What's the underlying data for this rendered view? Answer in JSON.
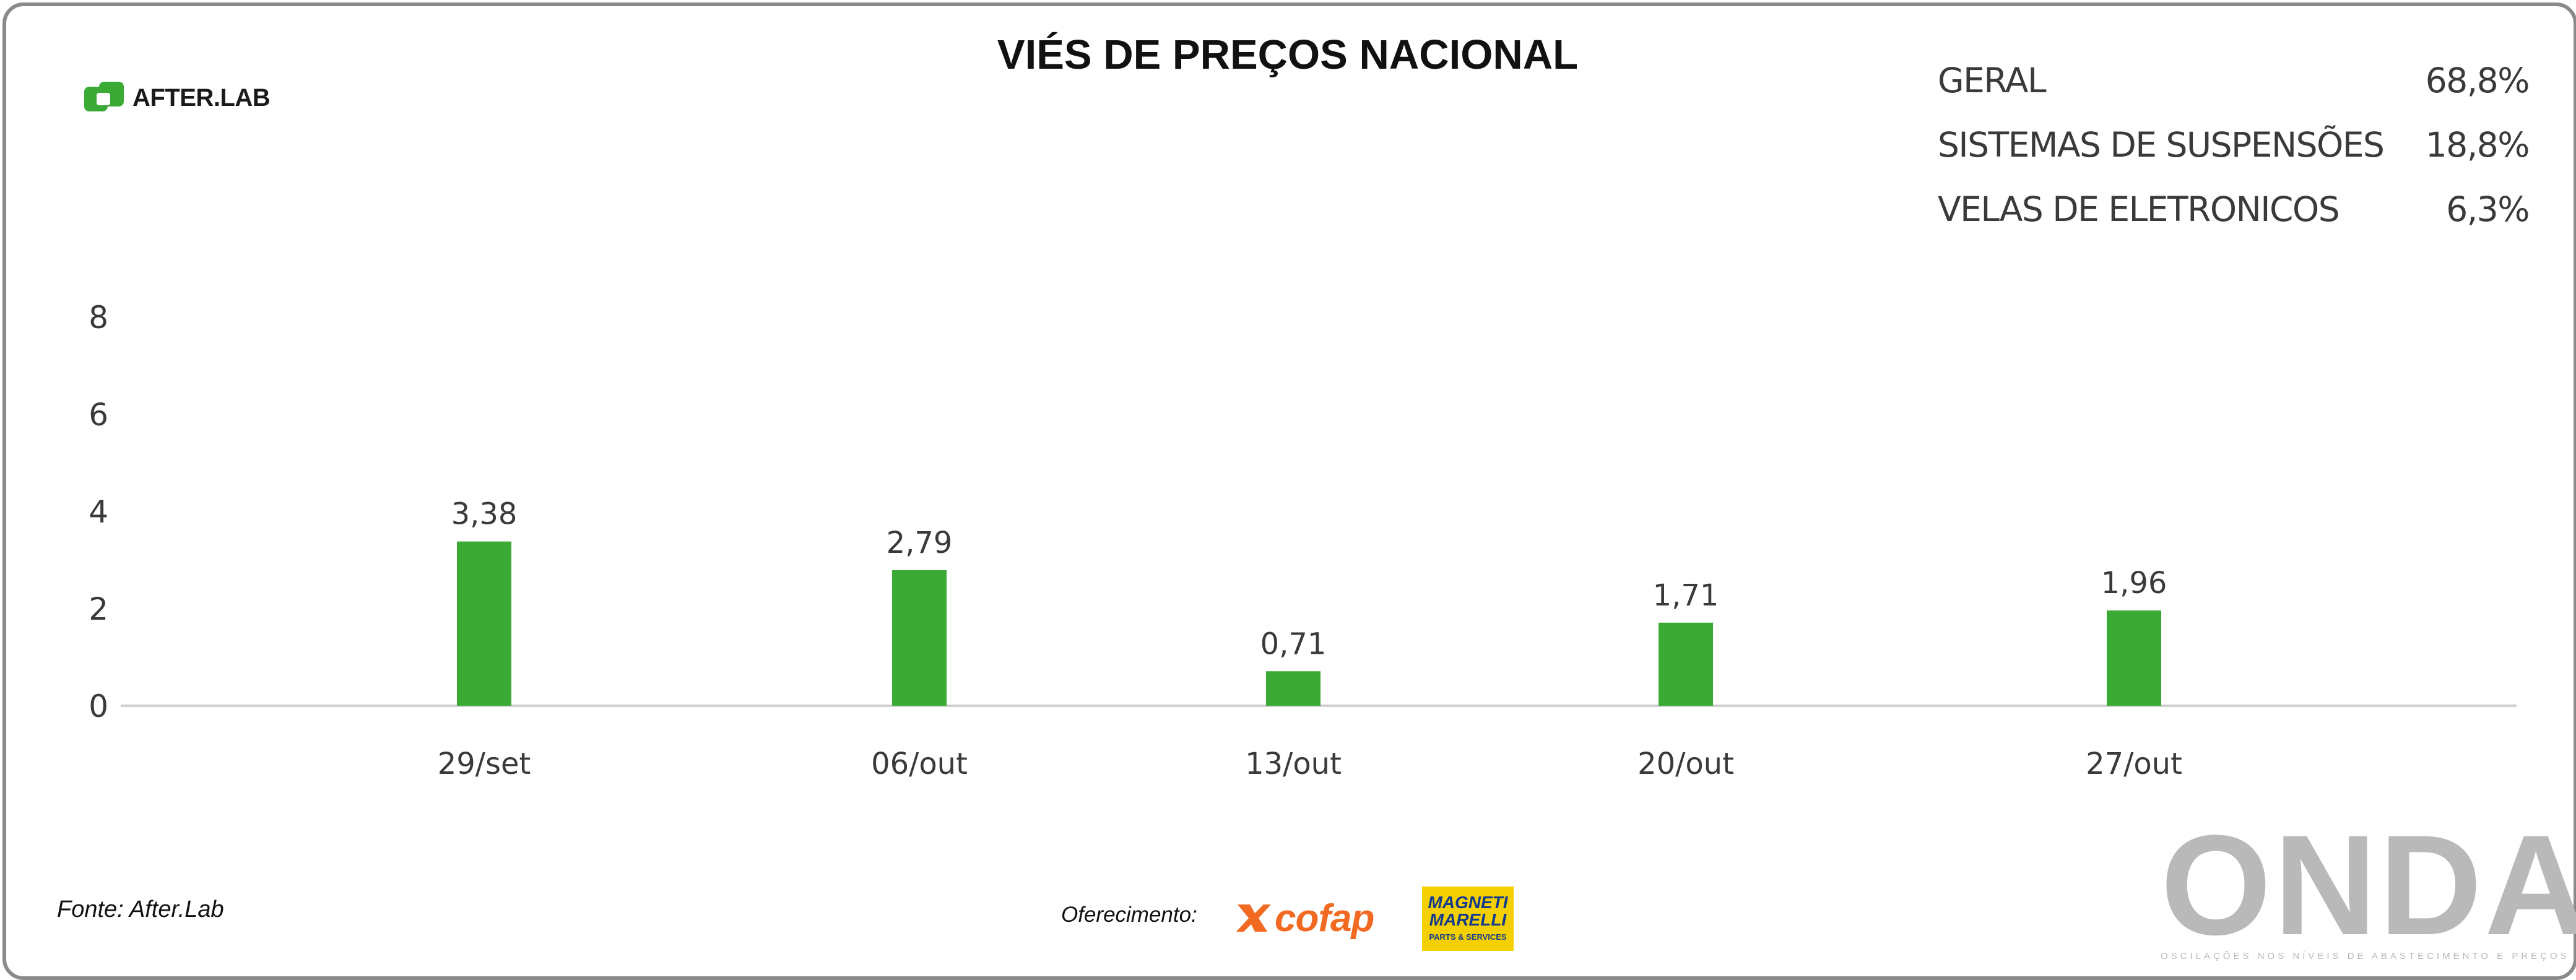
{
  "brand": {
    "name": "AFTER.LAB",
    "icon": "afterlab-logo-icon",
    "color": "#3aaa35"
  },
  "kpis": [
    {
      "label": "GERAL",
      "value": "68,8%"
    },
    {
      "label": "SISTEMAS DE SUSPENSÕES",
      "value": "18,8%"
    },
    {
      "label": "VELAS DE ELETRONICOS",
      "value": "6,3%"
    }
  ],
  "footer": {
    "source": "Fonte: After.Lab",
    "sponsor_label": "Oferecimento:",
    "sponsor1": "cofap",
    "sponsor2_line1": "MAGNETI",
    "sponsor2_line2": "MARELLI",
    "sponsor2_line3": "PARTS & SERVICES",
    "watermark": "ONDA",
    "watermark_tagline": "OSCILAÇÕES NOS NÍVEIS DE ABASTECIMENTO E PREÇOS"
  },
  "chart_data": {
    "type": "bar",
    "title": "VIÉS DE PREÇOS NACIONAL",
    "categories": [
      "29/set",
      "06/out",
      "13/out",
      "20/out",
      "27/out"
    ],
    "values": [
      3.38,
      2.79,
      0.71,
      1.71,
      1.96
    ],
    "value_labels": [
      "3,38",
      "2,79",
      "0,71",
      "1,71",
      "1,96"
    ],
    "yticks": [
      "0",
      "2",
      "4",
      "6",
      "8"
    ],
    "ylim": [
      0,
      8
    ],
    "grid": false,
    "legend": "none",
    "bar_color": "#3aaa35",
    "baseline_color": "#d0d0d0"
  }
}
